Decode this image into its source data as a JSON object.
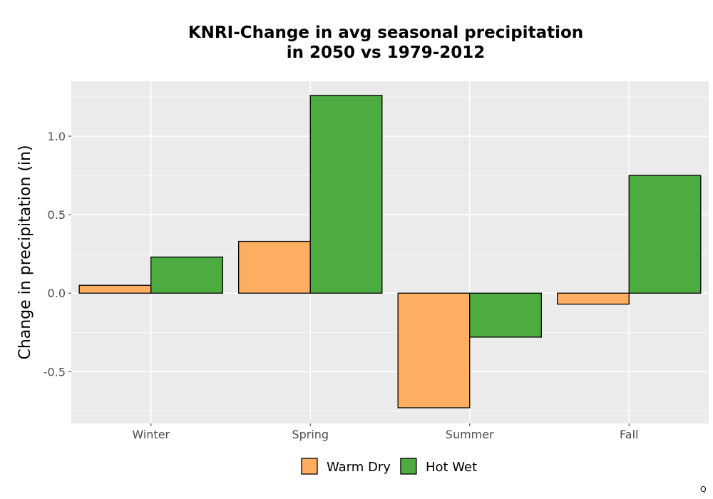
{
  "chart_data": {
    "type": "bar",
    "title": [
      "KNRI-Change in avg seasonal precipitation",
      "in 2050 vs 1979-2012"
    ],
    "xlabel": "",
    "ylabel": "Change in precipitation (in)",
    "categories": [
      "Winter",
      "Spring",
      "Summer",
      "Fall"
    ],
    "series": [
      {
        "name": "Warm Dry",
        "color": "#fdae61",
        "values": [
          0.05,
          0.33,
          -0.73,
          -0.07
        ]
      },
      {
        "name": "Hot Wet",
        "color": "#4dac3f",
        "values": [
          0.23,
          1.26,
          -0.28,
          0.75
        ]
      }
    ],
    "ylim": [
      -0.83,
      1.35
    ],
    "yticks": [
      -0.5,
      0.0,
      0.5,
      1.0
    ],
    "ytick_labels": [
      "-0.5",
      "0.0",
      "0.5",
      "1.0"
    ],
    "grid": true,
    "legend_position": "bottom",
    "panel_color": "#ebebeb",
    "corner_mark": "Q"
  }
}
